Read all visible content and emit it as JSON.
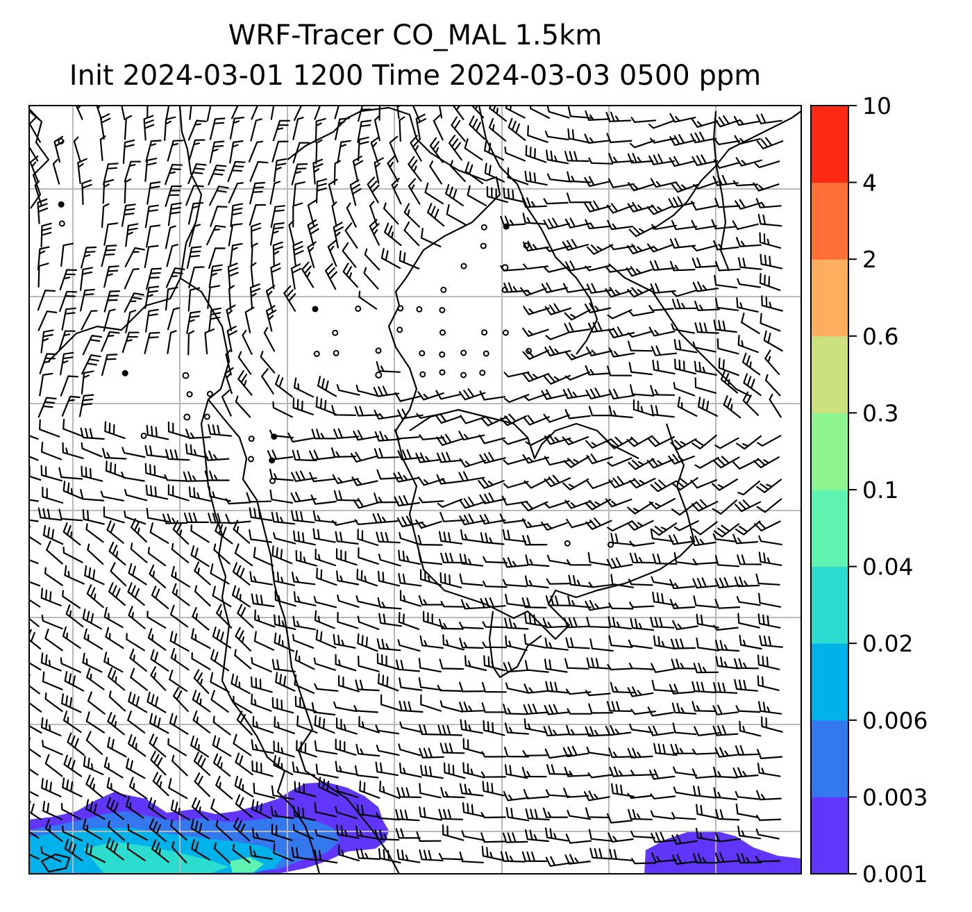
{
  "title": {
    "line1": "WRF-Tracer CO_MAL 1.5km",
    "line2": "Init 2024-03-01 1200 Time 2024-03-03 0500 ppm"
  },
  "colorbar": {
    "tick_labels": [
      "0.001",
      "0.003",
      "0.006",
      "0.02",
      "0.04",
      "0.1",
      "0.3",
      "0.6",
      "2",
      "4",
      "10"
    ],
    "colors": [
      "#6236fa",
      "#3478f0",
      "#00b2ea",
      "#2cdcce",
      "#5ef3b0",
      "#8ef58e",
      "#cde080",
      "#ffae5e",
      "#ff6f36",
      "#ff2a14"
    ]
  },
  "map": {
    "gridline_color": "#b8b8b8",
    "coastline_color": "#000000",
    "barb_color": "#000000"
  },
  "chart_data": {
    "type": "heatmap",
    "title": "WRF-Tracer CO_MAL 1.5km",
    "subtitle": "Init 2024-03-01 1200 Time 2024-03-03 0500 ppm",
    "colorbar_levels": [
      0.001,
      0.003,
      0.006,
      0.02,
      0.04,
      0.1,
      0.3,
      0.6,
      2,
      4,
      10
    ],
    "grid": true,
    "concentration_regions": [
      {
        "location": "southwest corner",
        "max_level": "0.04-0.1 ppm"
      },
      {
        "location": "south-central",
        "max_level": "0.003-0.006 ppm"
      },
      {
        "location": "southeast corner",
        "max_level": "0.001-0.003 ppm"
      }
    ]
  }
}
